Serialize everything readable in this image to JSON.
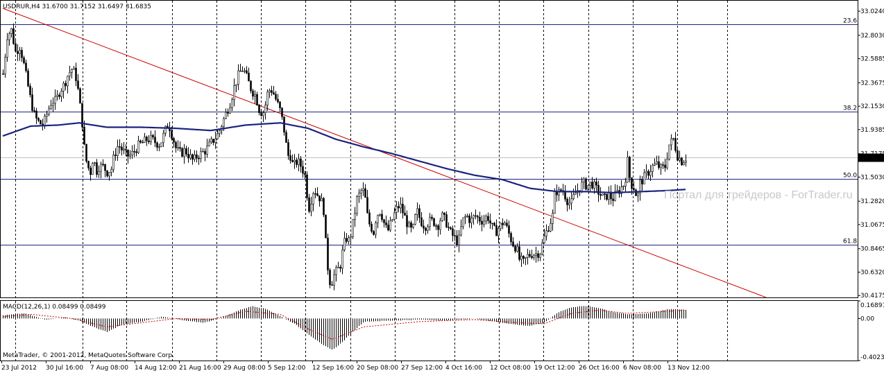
{
  "price_panel": {
    "header": "USDRUR,H4  31.6700 31.7152 31.6497 31.6835",
    "watermark": "Портал для трейдеров - ForTrader.ru",
    "current_price": "31.6835"
  },
  "macd_panel": {
    "header": "MACD(12,26,1) 0.08499 0.08499",
    "copyright": "MetaTrader, © 2001-2012, MetaQuotes Software Corp."
  },
  "fib_levels": [
    {
      "label": "23.6",
      "price": 32.905
    },
    {
      "label": "38.2",
      "price": 32.1
    },
    {
      "label": "50.0",
      "price": 31.485
    },
    {
      "label": "61.8",
      "price": 30.88
    }
  ],
  "colors": {
    "bull": "#ffffff",
    "bear": "#000000",
    "ma": "#1a237e",
    "trendline": "#cc0000",
    "grid": "#000000",
    "macd_hist": "#000000",
    "signal": "#cc0000",
    "price_tag_bg": "#000000",
    "price_tag_fg": "#ffffff"
  },
  "chart_data": [
    {
      "type": "candlestick",
      "symbol": "USDRUR",
      "timeframe": "H4",
      "ylim": [
        30.4,
        33.12
      ],
      "y_ticks": [
        "33.0240",
        "32.8030",
        "32.5885",
        "32.3675",
        "32.1530",
        "31.9385",
        "31.7175",
        "31.5030",
        "31.2820",
        "31.0675",
        "30.8465",
        "30.6320",
        "30.4175"
      ],
      "x_ticks": [
        "23 Jul 2012",
        "30 Jul 16:00",
        "7 Aug 08:00",
        "14 Aug 12:00",
        "21 Aug 16:00",
        "29 Aug 08:00",
        "5 Sep 12:00",
        "12 Sep 16:00",
        "20 Sep 08:00",
        "27 Sep 12:00",
        "4 Oct 16:00",
        "12 Oct 08:00",
        "19 Oct 12:00",
        "26 Oct 16:00",
        "6 Nov 08:00",
        "13 Nov 12:00"
      ],
      "grid": "vertical-dashed",
      "close_path": [
        [
          0,
          32.45
        ],
        [
          6,
          32.8
        ],
        [
          12,
          32.85
        ],
        [
          18,
          32.65
        ],
        [
          24,
          32.7
        ],
        [
          28,
          32.6
        ],
        [
          34,
          32.4
        ],
        [
          40,
          32.2
        ],
        [
          46,
          32.05
        ],
        [
          52,
          32.0
        ],
        [
          58,
          31.98
        ],
        [
          64,
          32.1
        ],
        [
          70,
          32.2
        ],
        [
          76,
          32.2
        ],
        [
          82,
          32.3
        ],
        [
          88,
          32.35
        ],
        [
          94,
          32.45
        ],
        [
          100,
          32.5
        ],
        [
          106,
          32.4
        ],
        [
          110,
          32.2
        ],
        [
          114,
          32.0
        ],
        [
          118,
          31.7
        ],
        [
          122,
          31.6
        ],
        [
          126,
          31.55
        ],
        [
          130,
          31.7
        ],
        [
          134,
          31.55
        ],
        [
          138,
          31.6
        ],
        [
          144,
          31.6
        ],
        [
          150,
          31.55
        ],
        [
          156,
          31.58
        ],
        [
          160,
          31.7
        ],
        [
          166,
          31.8
        ],
        [
          172,
          31.75
        ],
        [
          178,
          31.7
        ],
        [
          184,
          31.7
        ],
        [
          190,
          31.75
        ],
        [
          196,
          31.8
        ],
        [
          202,
          31.82
        ],
        [
          208,
          31.85
        ],
        [
          214,
          31.85
        ],
        [
          220,
          31.82
        ],
        [
          226,
          31.8
        ],
        [
          232,
          31.9
        ],
        [
          238,
          32.0
        ],
        [
          244,
          31.88
        ],
        [
          250,
          31.75
        ],
        [
          256,
          31.72
        ],
        [
          262,
          31.75
        ],
        [
          268,
          31.7
        ],
        [
          274,
          31.65
        ],
        [
          280,
          31.7
        ],
        [
          286,
          31.72
        ],
        [
          292,
          31.75
        ],
        [
          298,
          31.8
        ],
        [
          304,
          31.85
        ],
        [
          310,
          31.9
        ],
        [
          316,
          32.0
        ],
        [
          322,
          32.1
        ],
        [
          328,
          32.2
        ],
        [
          334,
          32.35
        ],
        [
          340,
          32.45
        ],
        [
          346,
          32.5
        ],
        [
          352,
          32.4
        ],
        [
          358,
          32.3
        ],
        [
          364,
          32.25
        ],
        [
          370,
          32.1
        ],
        [
          376,
          32.1
        ],
        [
          382,
          32.3
        ],
        [
          388,
          32.3
        ],
        [
          394,
          32.2
        ],
        [
          400,
          32.1
        ],
        [
          406,
          31.9
        ],
        [
          410,
          31.7
        ],
        [
          414,
          31.7
        ],
        [
          418,
          31.6
        ],
        [
          424,
          31.65
        ],
        [
          430,
          31.6
        ],
        [
          436,
          31.5
        ],
        [
          440,
          31.2
        ],
        [
          444,
          31.3
        ],
        [
          448,
          31.4
        ],
        [
          452,
          31.35
        ],
        [
          458,
          31.3
        ],
        [
          462,
          31.2
        ],
        [
          466,
          30.8
        ],
        [
          470,
          30.55
        ],
        [
          474,
          30.55
        ],
        [
          478,
          30.62
        ],
        [
          482,
          30.65
        ],
        [
          486,
          30.7
        ],
        [
          490,
          30.85
        ],
        [
          494,
          30.95
        ],
        [
          498,
          30.92
        ],
        [
          502,
          31.0
        ],
        [
          506,
          31.15
        ],
        [
          510,
          31.3
        ],
        [
          514,
          31.35
        ],
        [
          518,
          31.4
        ],
        [
          522,
          31.3
        ],
        [
          526,
          31.1
        ],
        [
          530,
          31.05
        ],
        [
          534,
          31.0
        ],
        [
          538,
          31.15
        ],
        [
          544,
          31.2
        ],
        [
          548,
          31.1
        ],
        [
          554,
          31.0
        ],
        [
          560,
          31.1
        ],
        [
          566,
          31.2
        ],
        [
          572,
          31.25
        ],
        [
          578,
          31.15
        ],
        [
          584,
          31.05
        ],
        [
          590,
          31.0
        ],
        [
          596,
          31.2
        ],
        [
          602,
          31.1
        ],
        [
          608,
          31.05
        ],
        [
          614,
          31.1
        ],
        [
          620,
          31.1
        ],
        [
          626,
          31.05
        ],
        [
          632,
          31.15
        ],
        [
          638,
          31.1
        ],
        [
          644,
          31.0
        ],
        [
          650,
          30.95
        ],
        [
          656,
          30.9
        ],
        [
          662,
          31.1
        ],
        [
          668,
          31.15
        ],
        [
          674,
          31.1
        ],
        [
          680,
          31.15
        ],
        [
          686,
          31.12
        ],
        [
          692,
          31.1
        ],
        [
          698,
          31.15
        ],
        [
          704,
          31.05
        ],
        [
          710,
          31.0
        ],
        [
          716,
          31.05
        ],
        [
          722,
          31.1
        ],
        [
          728,
          31.0
        ],
        [
          734,
          30.9
        ],
        [
          740,
          30.85
        ],
        [
          744,
          30.75
        ],
        [
          750,
          30.72
        ],
        [
          756,
          30.78
        ],
        [
          762,
          30.8
        ],
        [
          768,
          30.8
        ],
        [
          774,
          30.82
        ],
        [
          780,
          30.95
        ],
        [
          786,
          31.05
        ],
        [
          792,
          31.15
        ],
        [
          796,
          31.4
        ],
        [
          800,
          31.35
        ],
        [
          806,
          31.4
        ],
        [
          812,
          31.3
        ],
        [
          818,
          31.25
        ],
        [
          824,
          31.35
        ],
        [
          830,
          31.4
        ],
        [
          836,
          31.45
        ],
        [
          842,
          31.42
        ],
        [
          848,
          31.45
        ],
        [
          854,
          31.4
        ],
        [
          860,
          31.35
        ],
        [
          866,
          31.3
        ],
        [
          872,
          31.35
        ],
        [
          878,
          31.3
        ],
        [
          884,
          31.35
        ],
        [
          890,
          31.4
        ],
        [
          896,
          31.45
        ],
        [
          900,
          31.65
        ],
        [
          904,
          31.45
        ],
        [
          910,
          31.4
        ],
        [
          914,
          31.3
        ],
        [
          918,
          31.45
        ],
        [
          924,
          31.5
        ],
        [
          930,
          31.55
        ],
        [
          936,
          31.6
        ],
        [
          942,
          31.62
        ],
        [
          948,
          31.58
        ],
        [
          954,
          31.6
        ],
        [
          960,
          31.8
        ],
        [
          966,
          31.85
        ],
        [
          972,
          31.7
        ],
        [
          978,
          31.65
        ],
        [
          984,
          31.68
        ]
      ],
      "series": [
        {
          "name": "",
          "kind": "moving-average",
          "values": [
            [
              0,
              31.88
            ],
            [
              40,
              31.97
            ],
            [
              80,
              31.98
            ],
            [
              110,
              32.0
            ],
            [
              150,
              31.96
            ],
            [
              200,
              31.96
            ],
            [
              250,
              31.95
            ],
            [
              300,
              31.93
            ],
            [
              350,
              31.98
            ],
            [
              400,
              32.0
            ],
            [
              440,
              31.95
            ],
            [
              480,
              31.85
            ],
            [
              520,
              31.78
            ],
            [
              560,
              31.72
            ],
            [
              600,
              31.65
            ],
            [
              640,
              31.58
            ],
            [
              680,
              31.52
            ],
            [
              720,
              31.48
            ],
            [
              760,
              31.4
            ],
            [
              800,
              31.37
            ],
            [
              840,
              31.37
            ],
            [
              880,
              31.36
            ],
            [
              920,
              31.37
            ],
            [
              960,
              31.38
            ],
            [
              984,
              31.39
            ]
          ]
        },
        {
          "name": "",
          "kind": "trendline",
          "values": [
            [
              0,
              33.05
            ],
            [
              1100,
              30.4
            ]
          ]
        }
      ]
    },
    {
      "type": "bar",
      "title": "MACD(12,26,1) 0.08499 0.08499",
      "ylim": [
        -0.40234,
        0.16891
      ],
      "y_ticks": [
        "0.16891",
        "0.00",
        "-0.40234"
      ],
      "values_path": [
        [
          0,
          0.03
        ],
        [
          30,
          0.05
        ],
        [
          60,
          -0.01
        ],
        [
          90,
          0.01
        ],
        [
          110,
          -0.02
        ],
        [
          130,
          -0.08
        ],
        [
          150,
          -0.13
        ],
        [
          170,
          -0.06
        ],
        [
          200,
          -0.03
        ],
        [
          230,
          0.02
        ],
        [
          260,
          -0.02
        ],
        [
          290,
          -0.04
        ],
        [
          320,
          0.02
        ],
        [
          340,
          0.08
        ],
        [
          360,
          0.12
        ],
        [
          380,
          0.09
        ],
        [
          400,
          0.02
        ],
        [
          420,
          -0.05
        ],
        [
          440,
          -0.15
        ],
        [
          460,
          -0.25
        ],
        [
          475,
          -0.3
        ],
        [
          490,
          -0.22
        ],
        [
          505,
          -0.12
        ],
        [
          520,
          -0.03
        ],
        [
          560,
          -0.02
        ],
        [
          600,
          -0.01
        ],
        [
          640,
          -0.02
        ],
        [
          680,
          0.0
        ],
        [
          710,
          -0.03
        ],
        [
          740,
          -0.06
        ],
        [
          760,
          -0.07
        ],
        [
          780,
          -0.04
        ],
        [
          800,
          0.06
        ],
        [
          820,
          0.11
        ],
        [
          840,
          0.12
        ],
        [
          860,
          0.1
        ],
        [
          880,
          0.06
        ],
        [
          900,
          0.04
        ],
        [
          930,
          0.05
        ],
        [
          960,
          0.09
        ],
        [
          984,
          0.085
        ]
      ],
      "signal_path": [
        [
          0,
          0.02
        ],
        [
          40,
          0.04
        ],
        [
          100,
          0.0
        ],
        [
          150,
          -0.08
        ],
        [
          200,
          -0.04
        ],
        [
          250,
          0.0
        ],
        [
          300,
          -0.01
        ],
        [
          350,
          0.07
        ],
        [
          400,
          0.04
        ],
        [
          440,
          -0.1
        ],
        [
          475,
          -0.2
        ],
        [
          520,
          -0.08
        ],
        [
          600,
          -0.03
        ],
        [
          680,
          -0.01
        ],
        [
          740,
          -0.04
        ],
        [
          780,
          -0.05
        ],
        [
          820,
          0.05
        ],
        [
          860,
          0.08
        ],
        [
          900,
          0.05
        ],
        [
          960,
          0.07
        ],
        [
          984,
          0.08
        ]
      ]
    }
  ]
}
